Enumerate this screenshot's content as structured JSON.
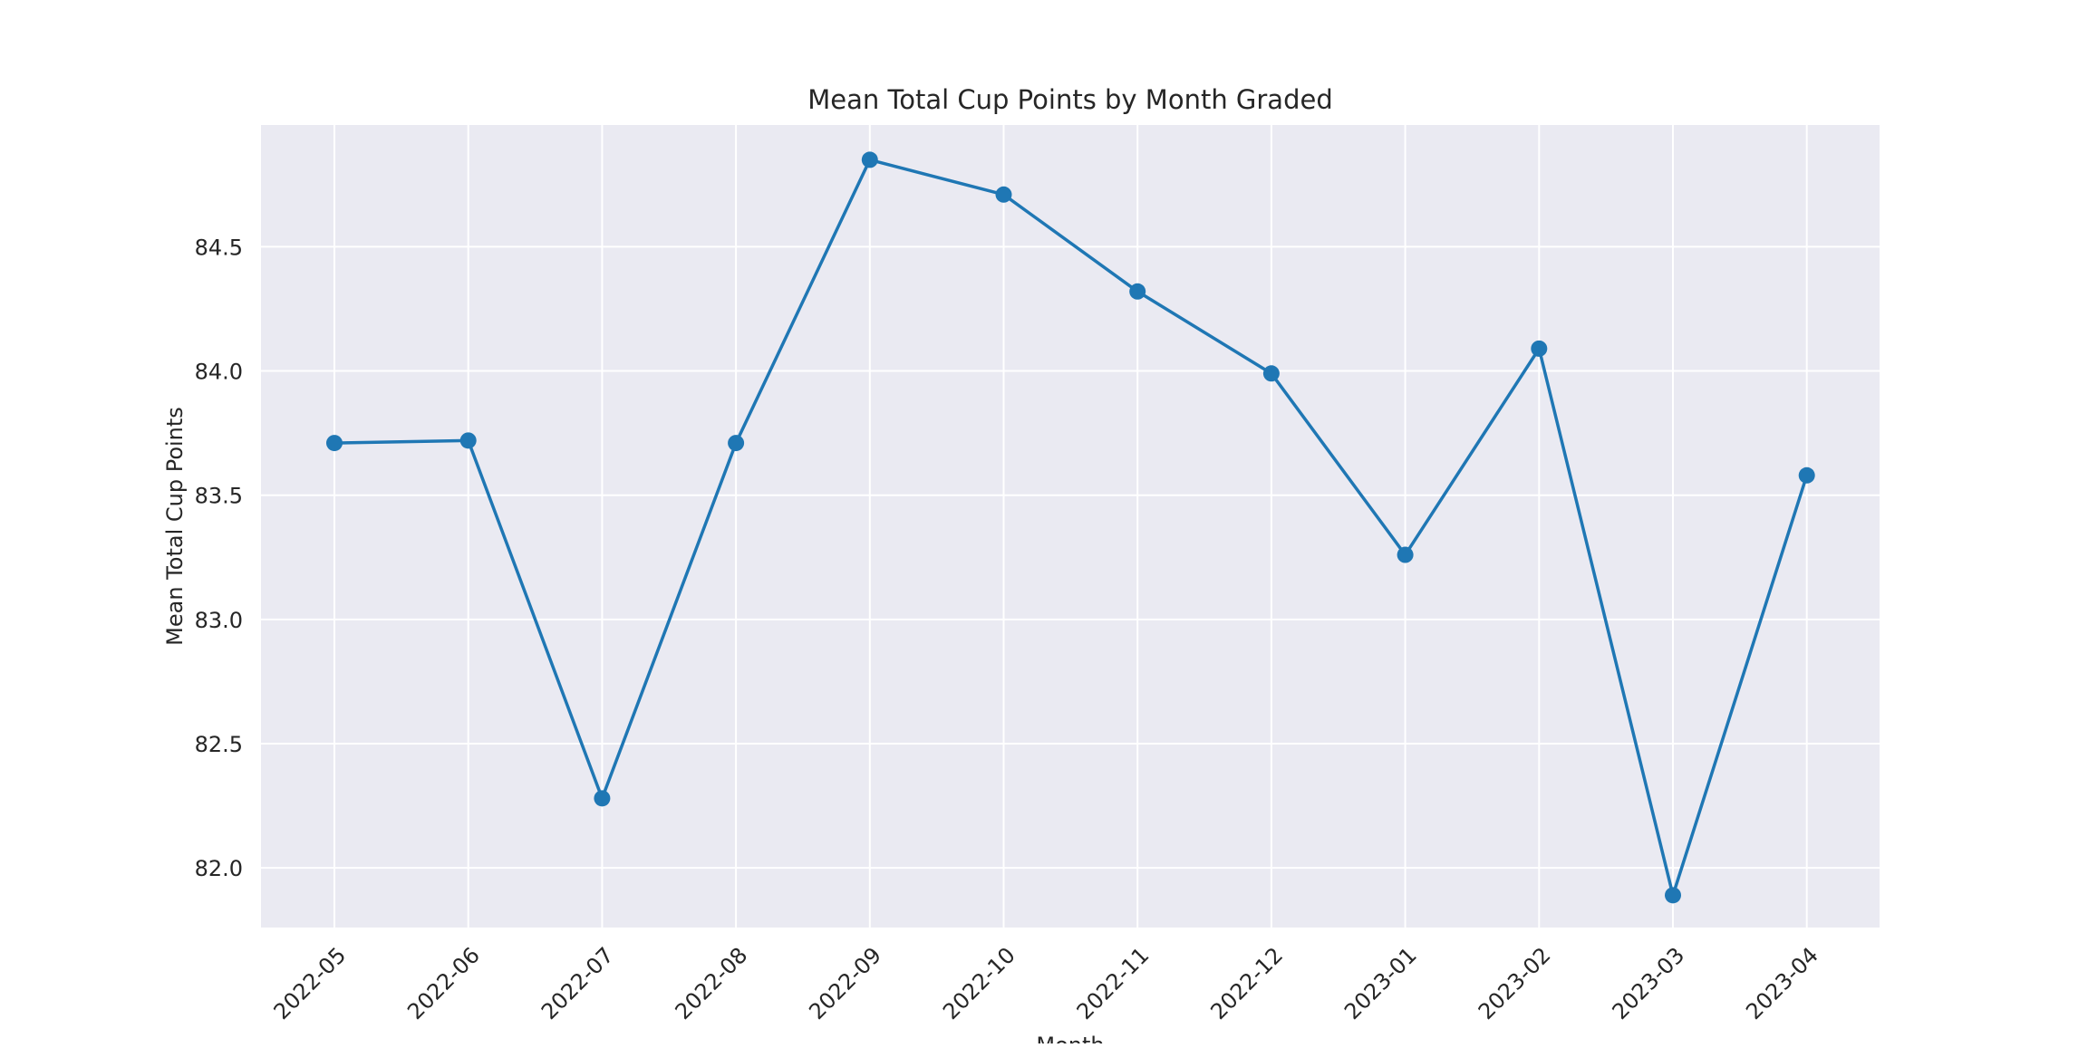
{
  "chart_data": {
    "type": "line",
    "title": "Mean Total Cup Points by Month Graded",
    "xlabel": "Month",
    "ylabel": "Mean Total Cup Points",
    "categories": [
      "2022-05",
      "2022-06",
      "2022-07",
      "2022-08",
      "2022-09",
      "2022-10",
      "2022-11",
      "2022-12",
      "2023-01",
      "2023-02",
      "2023-03",
      "2023-04"
    ],
    "series": [
      {
        "values": [
          83.71,
          83.72,
          82.28,
          83.71,
          84.85,
          84.71,
          84.32,
          83.99,
          83.26,
          84.09,
          81.89,
          83.58
        ]
      }
    ],
    "yticks": [
      "82.0",
      "82.5",
      "83.0",
      "83.5",
      "84.0",
      "84.5"
    ],
    "ylim": [
      81.76,
      84.99
    ],
    "grid": true,
    "legend": "none",
    "colors": {
      "line": "#1f77b4",
      "plot_background": "#eaeaf2",
      "grid": "#ffffff",
      "text": "#262626"
    }
  }
}
